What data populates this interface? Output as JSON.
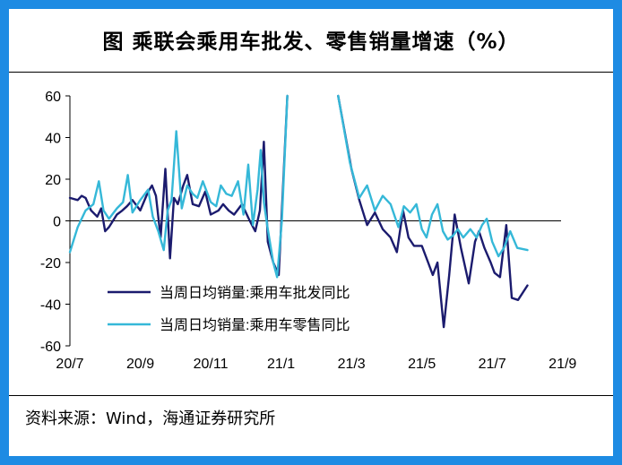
{
  "title": "图  乘联会乘用车批发、零售销量增速（%）",
  "source": "资料来源：Wind，海通证券研究所",
  "colors": {
    "frame": "#1e8be3",
    "wholesale": "#1b1b6e",
    "retail": "#35b8d8"
  },
  "chart_data": {
    "type": "line",
    "ylim": [
      -60,
      60
    ],
    "yticks": [
      "60",
      "40",
      "20",
      "0",
      "-20",
      "-40",
      "-60"
    ],
    "ytick_values": [
      60,
      40,
      20,
      0,
      -20,
      -40,
      -60
    ],
    "xticks": [
      "20/7",
      "20/9",
      "20/11",
      "21/1",
      "21/3",
      "21/5",
      "21/7",
      "21/9"
    ],
    "xtick_values": [
      0,
      9,
      18,
      27,
      36,
      45,
      54,
      63
    ],
    "legend_position": "lower-left",
    "series": [
      {
        "name": "当周日均销量:乘用车批发同比",
        "color": "#1b1b6e",
        "segments": [
          [
            [
              0,
              11
            ],
            [
              1,
              10
            ],
            [
              1.5,
              12
            ],
            [
              2,
              11
            ],
            [
              2.7,
              5
            ],
            [
              3.5,
              2
            ],
            [
              4,
              6
            ],
            [
              4.5,
              -5
            ],
            [
              5,
              -3
            ],
            [
              6,
              3
            ],
            [
              6.7,
              5
            ],
            [
              7.3,
              7
            ],
            [
              8,
              10
            ],
            [
              9,
              5
            ],
            [
              10,
              14
            ],
            [
              10.5,
              17
            ],
            [
              11,
              12
            ],
            [
              11.6,
              -8
            ],
            [
              12.2,
              25
            ],
            [
              12.8,
              -18
            ],
            [
              13.3,
              11
            ],
            [
              13.8,
              8
            ],
            [
              14.5,
              17
            ],
            [
              15,
              22
            ],
            [
              15.7,
              8
            ],
            [
              16.5,
              7
            ],
            [
              17.3,
              14
            ],
            [
              18,
              3
            ],
            [
              19,
              5
            ],
            [
              19.6,
              8
            ],
            [
              20.3,
              5
            ],
            [
              21,
              3
            ],
            [
              22,
              8
            ],
            [
              23,
              0
            ],
            [
              23.7,
              -5
            ],
            [
              24.3,
              5
            ],
            [
              24.8,
              38
            ],
            [
              25.3,
              -10
            ],
            [
              26,
              -20
            ],
            [
              26.7,
              -26
            ],
            [
              27.3,
              20
            ],
            [
              27.8,
              60
            ]
          ],
          [
            [
              34.3,
              60
            ],
            [
              36,
              25
            ],
            [
              37,
              10
            ],
            [
              38,
              -2
            ],
            [
              39,
              4
            ],
            [
              40,
              -4
            ],
            [
              41,
              -8
            ],
            [
              41.8,
              -15
            ],
            [
              42.6,
              5
            ],
            [
              43.3,
              -8
            ],
            [
              44,
              -12
            ],
            [
              45,
              -12
            ],
            [
              45.8,
              -20
            ],
            [
              46.4,
              -26
            ],
            [
              47,
              -20
            ],
            [
              47.8,
              -51
            ],
            [
              48.5,
              -26
            ],
            [
              49.2,
              3
            ],
            [
              50,
              -13
            ],
            [
              51,
              -30
            ],
            [
              51.8,
              -10
            ],
            [
              52.3,
              -5
            ],
            [
              53,
              -13
            ],
            [
              53.8,
              -20
            ],
            [
              54.3,
              -25
            ],
            [
              55,
              -27
            ],
            [
              55.8,
              -2
            ],
            [
              56.5,
              -37
            ],
            [
              57.3,
              -38
            ],
            [
              58.5,
              -31
            ]
          ]
        ]
      },
      {
        "name": "当周日均销量:乘用车零售同比",
        "color": "#35b8d8",
        "segments": [
          [
            [
              0,
              -15
            ],
            [
              1,
              -3
            ],
            [
              2,
              5
            ],
            [
              3,
              8
            ],
            [
              3.7,
              19
            ],
            [
              4.3,
              5
            ],
            [
              5,
              1
            ],
            [
              6,
              6
            ],
            [
              6.8,
              9
            ],
            [
              7.4,
              22
            ],
            [
              8,
              4
            ],
            [
              9,
              10
            ],
            [
              10,
              15
            ],
            [
              10.6,
              2
            ],
            [
              11.3,
              -5
            ],
            [
              12,
              -14
            ],
            [
              12.5,
              5
            ],
            [
              13,
              10
            ],
            [
              13.6,
              43
            ],
            [
              14.3,
              6
            ],
            [
              15,
              17
            ],
            [
              15.7,
              13
            ],
            [
              16.3,
              11
            ],
            [
              17,
              19
            ],
            [
              18,
              9
            ],
            [
              18.7,
              7
            ],
            [
              19.3,
              17
            ],
            [
              20,
              13
            ],
            [
              20.7,
              12
            ],
            [
              21.5,
              19
            ],
            [
              22.2,
              3
            ],
            [
              22.8,
              27
            ],
            [
              23.4,
              -2
            ],
            [
              24,
              15
            ],
            [
              24.4,
              34
            ],
            [
              24.8,
              9
            ],
            [
              25.3,
              -4
            ],
            [
              26,
              -20
            ],
            [
              26.5,
              -27
            ],
            [
              27.1,
              0
            ],
            [
              27.8,
              60
            ]
          ],
          [
            [
              34.3,
              60
            ],
            [
              35.8,
              28
            ],
            [
              37,
              11
            ],
            [
              38,
              17
            ],
            [
              39,
              5
            ],
            [
              40,
              12
            ],
            [
              41,
              8
            ],
            [
              42,
              -3
            ],
            [
              42.7,
              7
            ],
            [
              43.5,
              4
            ],
            [
              44.3,
              8
            ],
            [
              45,
              -4
            ],
            [
              45.6,
              -8
            ],
            [
              46.3,
              3
            ],
            [
              47,
              8
            ],
            [
              47.7,
              -5
            ],
            [
              48.3,
              -9
            ],
            [
              49,
              -7
            ],
            [
              49.6,
              -4
            ],
            [
              50.3,
              -8
            ],
            [
              51.2,
              -4
            ],
            [
              52,
              -8
            ],
            [
              52.7,
              -2
            ],
            [
              53.3,
              1
            ],
            [
              54,
              -10
            ],
            [
              54.8,
              -17
            ],
            [
              55.5,
              -13
            ],
            [
              56.3,
              -5
            ],
            [
              57.2,
              -13
            ],
            [
              58.5,
              -14
            ]
          ]
        ]
      }
    ]
  }
}
